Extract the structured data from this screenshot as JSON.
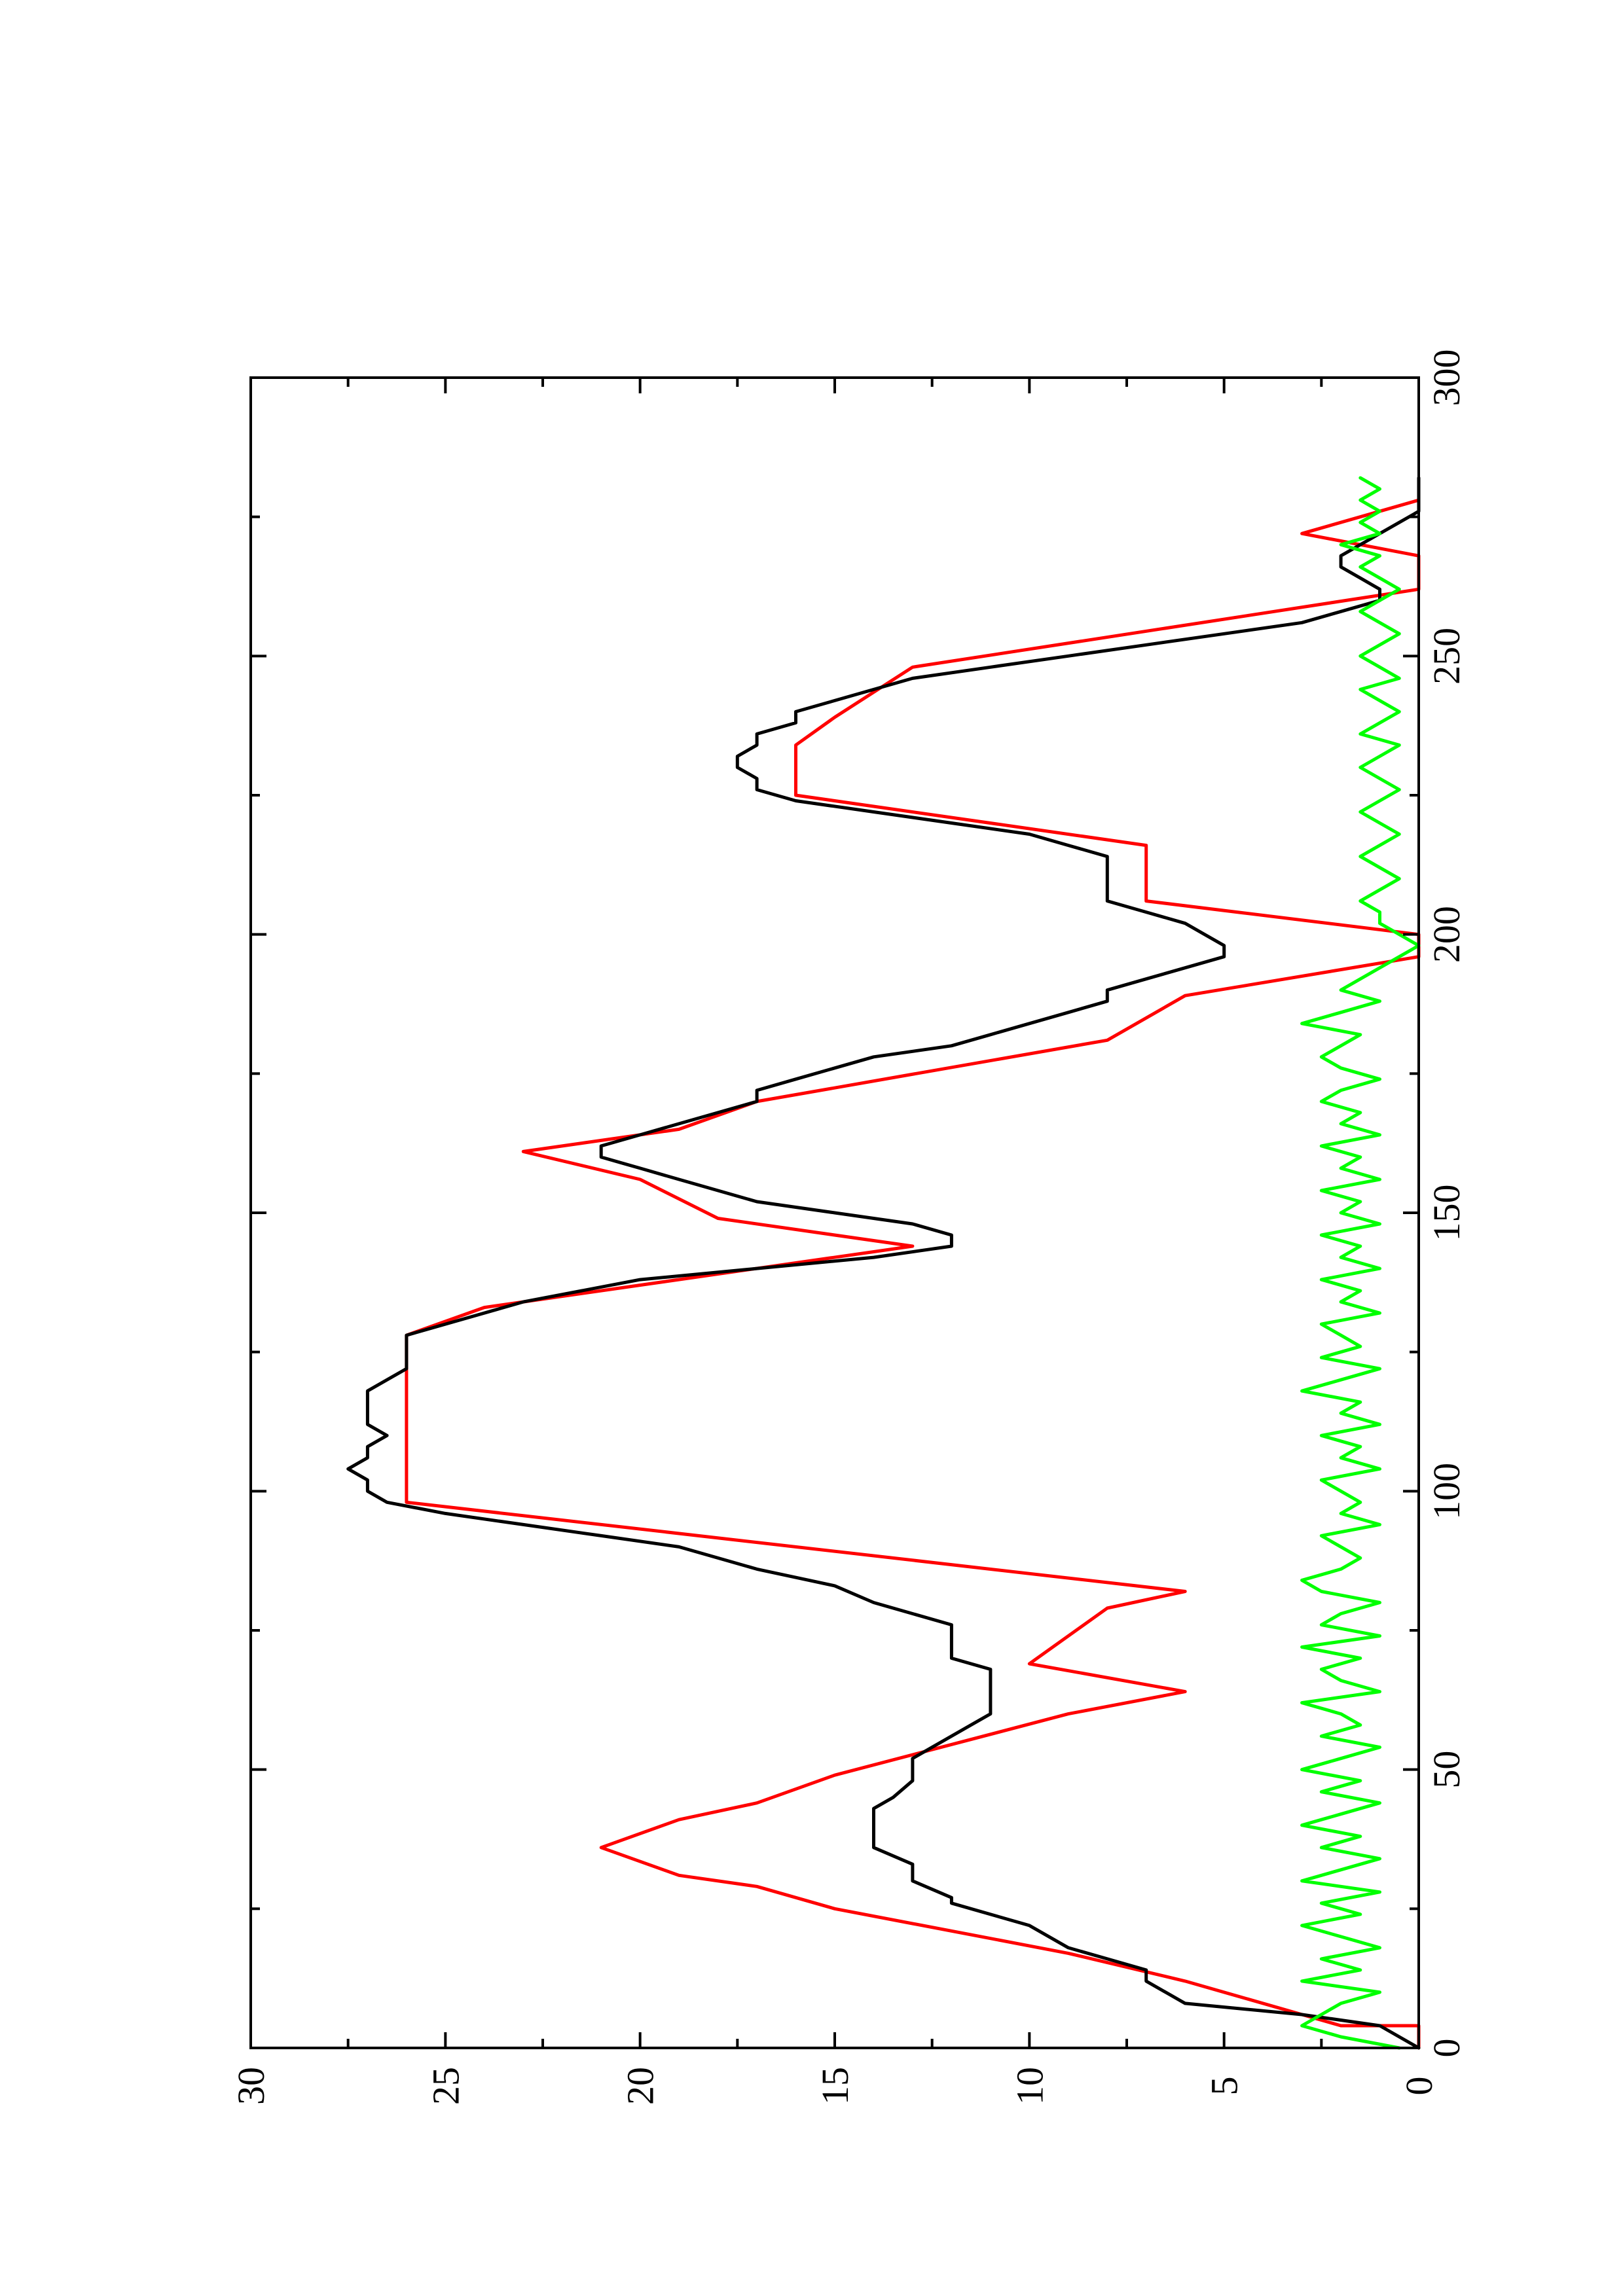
{
  "chart_data": {
    "type": "line",
    "title": "",
    "xlabel": "",
    "ylabel": "",
    "xlim": [
      0,
      300
    ],
    "ylim": [
      0,
      30
    ],
    "xticks": [
      0,
      50,
      100,
      150,
      200,
      250,
      300
    ],
    "yticks": [
      0,
      5,
      10,
      15,
      20,
      25,
      30
    ],
    "xtick_labels": [
      "0",
      "50",
      "100",
      "150",
      "200",
      "250",
      "300"
    ],
    "ytick_labels": [
      "0",
      "5",
      "10",
      "15",
      "20",
      "25",
      "30"
    ],
    "grid": false,
    "legend": "none",
    "orientation": "rotated-90",
    "series": [
      {
        "color": "#ff0000",
        "style": "stepped",
        "x": [
          0,
          4,
          4,
          12,
          12,
          17,
          17,
          25,
          25,
          29,
          29,
          31,
          31,
          36,
          36,
          41,
          41,
          44,
          44,
          49,
          49,
          60,
          60,
          64,
          64,
          69,
          69,
          79,
          79,
          82,
          82,
          98,
          98,
          128,
          128,
          133,
          133,
          144,
          144,
          149,
          149,
          156,
          156,
          161,
          161,
          165,
          165,
          170,
          170,
          181,
          181,
          189,
          189,
          196,
          196,
          200,
          200,
          206,
          206,
          216,
          216,
          225,
          225,
          234,
          234,
          239,
          239,
          248,
          248,
          262,
          262,
          268,
          268,
          272,
          272,
          278
        ],
        "y": [
          0,
          0,
          2,
          6,
          6,
          9,
          9,
          15,
          15,
          17,
          17,
          19,
          19,
          21,
          21,
          19,
          19,
          17,
          17,
          15,
          15,
          9,
          9,
          6,
          6,
          10,
          10,
          8,
          8,
          6,
          6,
          26,
          26,
          26,
          26,
          24,
          24,
          13,
          13,
          18,
          18,
          20,
          20,
          23,
          23,
          19,
          19,
          17,
          17,
          8,
          8,
          6,
          6,
          0,
          0,
          0,
          0,
          7,
          7,
          7,
          7,
          16,
          16,
          16,
          16,
          15,
          15,
          13,
          13,
          0,
          0,
          0,
          0,
          3,
          3,
          0
        ]
      },
      {
        "color": "#000000",
        "style": "line",
        "x": [
          0,
          4,
          6,
          8,
          12,
          14,
          16,
          18,
          22,
          26,
          27,
          30,
          31,
          33,
          36,
          37,
          39,
          41,
          43,
          45,
          48,
          50,
          52,
          54,
          56,
          58,
          60,
          62,
          64,
          66,
          68,
          70,
          72,
          74,
          76,
          78,
          80,
          83,
          86,
          88,
          90,
          92,
          94,
          96,
          98,
          100,
          102,
          104,
          106,
          108,
          110,
          112,
          114,
          116,
          118,
          120,
          122,
          124,
          126,
          128,
          130,
          134,
          138,
          140,
          142,
          144,
          146,
          148,
          150,
          152,
          154,
          156,
          158,
          160,
          162,
          164,
          166,
          168,
          170,
          172,
          174,
          176,
          178,
          180,
          182,
          184,
          186,
          188,
          190,
          192,
          194,
          196,
          198,
          200,
          202,
          204,
          206,
          208,
          210,
          212,
          214,
          216,
          218,
          220,
          222,
          224,
          226,
          228,
          230,
          232,
          234,
          236,
          238,
          240,
          242,
          244,
          246,
          248,
          250,
          252,
          254,
          256,
          258,
          260,
          262,
          264,
          266,
          268,
          270,
          272,
          274,
          276,
          278,
          280,
          282
        ],
        "y": [
          0,
          1,
          3,
          6,
          7,
          7,
          8,
          9,
          10,
          12,
          12,
          13,
          13,
          13,
          14,
          14,
          14,
          14,
          14,
          13.5,
          13,
          13,
          13,
          12.5,
          12,
          11.5,
          11,
          11,
          11,
          11,
          11,
          12,
          12,
          12,
          12,
          13,
          14,
          15,
          17,
          18,
          19,
          21,
          23,
          25,
          26.5,
          27,
          27,
          27.5,
          27,
          27,
          26.5,
          27,
          27,
          27,
          27,
          26.5,
          26,
          26,
          26,
          26,
          25,
          23,
          20,
          17,
          14,
          12,
          12,
          13,
          15,
          17,
          18,
          19,
          20,
          21,
          21,
          20,
          19,
          18,
          17,
          17,
          16,
          15,
          14,
          12,
          11,
          10,
          9,
          8,
          8,
          7,
          6,
          5,
          5,
          5.5,
          6,
          7,
          8,
          8,
          8,
          8,
          8,
          9,
          10,
          12,
          14,
          16,
          17,
          17,
          17.5,
          17.5,
          17,
          17,
          16,
          16,
          15,
          14,
          13,
          11,
          9,
          7,
          5,
          3,
          2,
          1,
          1,
          1.5,
          2,
          2,
          1.5,
          1,
          0.5,
          0,
          0,
          0,
          0
        ]
      },
      {
        "color": "#00ff00",
        "style": "line",
        "x": [
          0,
          2,
          4,
          6,
          8,
          10,
          12,
          14,
          16,
          18,
          20,
          22,
          24,
          26,
          28,
          30,
          32,
          34,
          36,
          38,
          40,
          42,
          44,
          46,
          48,
          50,
          52,
          54,
          56,
          58,
          60,
          62,
          64,
          66,
          68,
          70,
          72,
          74,
          76,
          78,
          80,
          82,
          84,
          86,
          88,
          90,
          92,
          94,
          96,
          98,
          100,
          102,
          104,
          106,
          108,
          110,
          112,
          114,
          116,
          118,
          120,
          122,
          124,
          126,
          128,
          130,
          132,
          134,
          136,
          138,
          140,
          142,
          144,
          146,
          148,
          150,
          152,
          154,
          156,
          158,
          160,
          162,
          164,
          166,
          168,
          170,
          172,
          174,
          176,
          178,
          180,
          182,
          184,
          186,
          188,
          190,
          192,
          194,
          196,
          198,
          200,
          202,
          204,
          206,
          208,
          210,
          212,
          214,
          216,
          218,
          220,
          222,
          224,
          226,
          228,
          230,
          232,
          234,
          236,
          238,
          240,
          242,
          244,
          246,
          248,
          250,
          252,
          254,
          256,
          258,
          260,
          262,
          264,
          266,
          268,
          270,
          272,
          274,
          276,
          278,
          280,
          282
        ],
        "y": [
          0.5,
          2,
          3,
          2.5,
          2,
          1,
          3,
          1.5,
          2.5,
          1,
          2,
          3,
          1.5,
          2.5,
          1,
          3,
          2,
          1,
          2.5,
          1.5,
          3,
          2,
          1,
          2.5,
          1.5,
          3,
          2,
          1,
          2.5,
          1.5,
          2,
          3,
          1,
          2,
          2.5,
          1.5,
          3,
          1,
          2.5,
          2,
          1,
          2.5,
          3,
          2,
          1.5,
          2,
          2.5,
          1,
          2,
          1.5,
          2,
          2.5,
          1,
          2,
          1.5,
          2.5,
          1,
          2,
          1.5,
          3,
          2,
          1,
          2.5,
          1.5,
          2,
          2.5,
          1,
          2,
          1.5,
          2.5,
          1,
          2,
          1.5,
          2.5,
          1,
          2,
          1.5,
          2.5,
          1,
          2,
          1.5,
          2.5,
          1,
          2,
          1.5,
          2.5,
          2,
          1,
          2,
          2.5,
          2,
          1.5,
          3,
          2,
          1,
          2,
          1.5,
          1,
          0.5,
          0,
          0.5,
          1,
          1,
          1.5,
          1,
          0.5,
          1,
          1.5,
          1,
          0.5,
          1,
          1.5,
          1,
          0.5,
          1,
          1.5,
          1,
          0.5,
          1.5,
          1,
          0.5,
          1,
          1.5,
          0.5,
          1,
          1.5,
          1,
          0.5,
          1,
          1.5,
          1,
          0.5,
          1,
          1.5,
          1,
          2,
          1,
          1.5,
          1,
          1.5,
          1,
          1.5
        ]
      }
    ]
  }
}
